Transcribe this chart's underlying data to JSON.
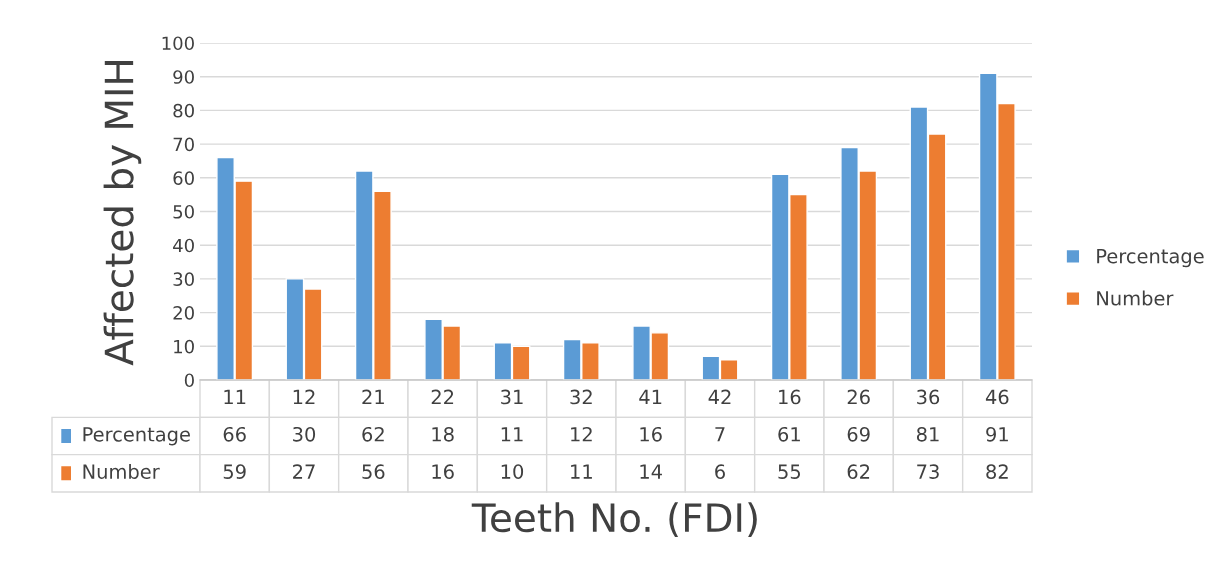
{
  "chart_data": {
    "type": "bar",
    "xlabel": "Teeth No. (FDI)",
    "ylabel": "Affected by MIH",
    "categories": [
      "11",
      "12",
      "21",
      "22",
      "31",
      "32",
      "41",
      "42",
      "16",
      "26",
      "36",
      "46"
    ],
    "series": [
      {
        "name": "Percentage",
        "color": "#5b9bd5",
        "values": [
          66,
          30,
          62,
          18,
          11,
          12,
          16,
          7,
          61,
          69,
          81,
          91
        ]
      },
      {
        "name": "Number",
        "color": "#ed7d31",
        "values": [
          59,
          27,
          56,
          16,
          10,
          11,
          14,
          6,
          55,
          62,
          73,
          82
        ]
      }
    ],
    "ylim": [
      0,
      100
    ],
    "yticks": [
      0,
      10,
      20,
      30,
      40,
      50,
      60,
      70,
      80,
      90,
      100
    ],
    "grid": "y",
    "legend": "right",
    "data_labels": true,
    "tick_labels": "y"
  }
}
